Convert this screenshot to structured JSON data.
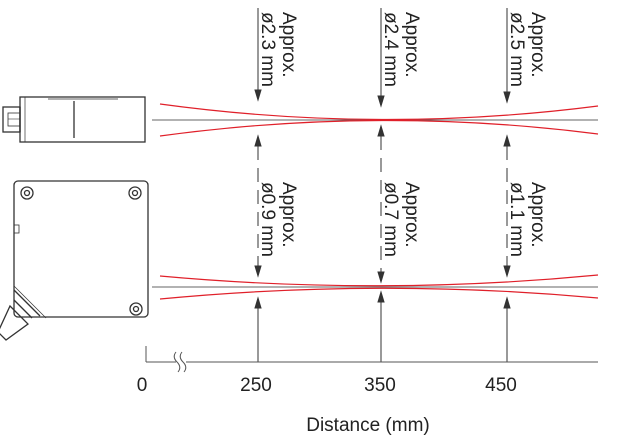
{
  "top_spots": [
    {
      "line1": "Approx.",
      "line2": "ø2.3 mm"
    },
    {
      "line1": "Approx.",
      "line2": "ø2.4 mm"
    },
    {
      "line1": "Approx.",
      "line2": "ø2.5 mm"
    }
  ],
  "bottom_spots": [
    {
      "line1": "Approx.",
      "line2": "ø0.9 mm"
    },
    {
      "line1": "Approx.",
      "line2": "ø0.7 mm"
    },
    {
      "line1": "Approx.",
      "line2": "ø1.1 mm"
    }
  ],
  "axis": {
    "ticks": [
      "0",
      "250",
      "350",
      "450"
    ],
    "title": "Distance (mm)"
  },
  "colors": {
    "beam": "#e0202a",
    "line": "#555555",
    "sensor_stroke": "#333333"
  },
  "icons": {
    "axis_break": "axis-break-icon",
    "sensor_top": "sensor-top-view-icon",
    "sensor_side": "sensor-side-view-icon"
  }
}
